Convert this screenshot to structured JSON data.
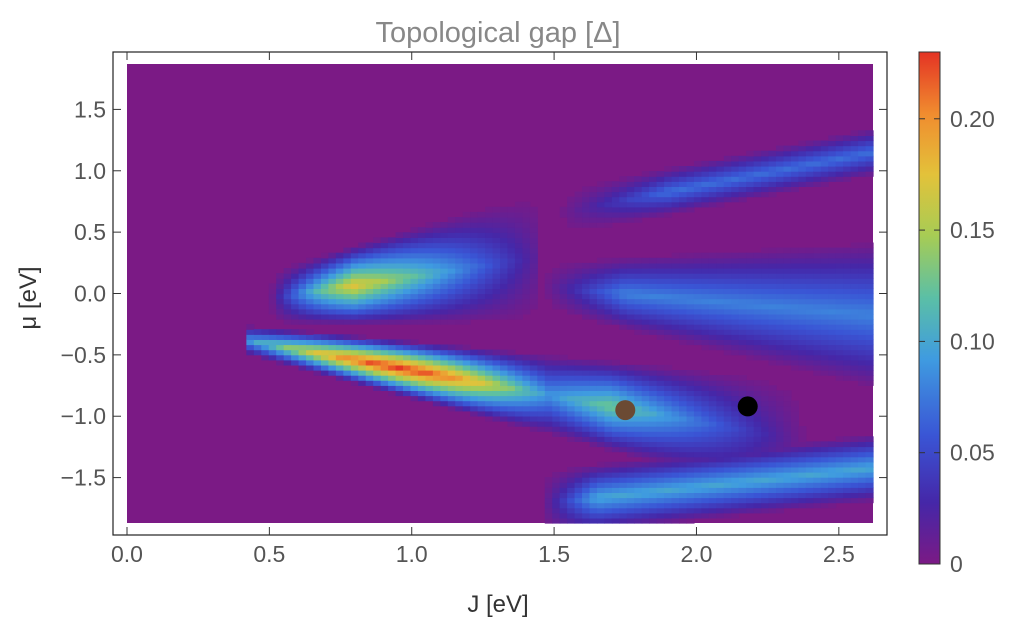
{
  "chart_data": {
    "type": "heatmap",
    "title": "Topological gap [Δ]",
    "xlabel": "J [eV]",
    "ylabel": "μ [eV]",
    "xlim": [
      0.0,
      2.62
    ],
    "ylim": [
      -1.87,
      1.87
    ],
    "x_ticks": [
      "0.0",
      "0.5",
      "1.0",
      "1.5",
      "2.0",
      "2.5"
    ],
    "x_tick_values": [
      0.0,
      0.5,
      1.0,
      1.5,
      2.0,
      2.5
    ],
    "y_ticks": [
      "1.5",
      "1.0",
      "0.5",
      "0.0",
      "−0.5",
      "−1.0",
      "−1.5"
    ],
    "y_tick_values": [
      1.5,
      1.0,
      0.5,
      0.0,
      -0.5,
      -1.0,
      -1.5
    ],
    "colorbar": {
      "range": [
        0,
        0.23
      ],
      "ticks": [
        "0.20",
        "0.15",
        "0.10",
        "0.05",
        "0"
      ],
      "tick_values": [
        0.2,
        0.15,
        0.1,
        0.05,
        0.0
      ]
    },
    "background_value": 0,
    "peak": {
      "J": 0.93,
      "mu": -0.6,
      "value": 0.22
    },
    "markers": [
      {
        "J": 1.75,
        "mu": -0.95,
        "color": "#6b4a33"
      },
      {
        "J": 2.18,
        "mu": -0.92,
        "color": "#000000"
      }
    ],
    "regions": [
      {
        "label": "upper lobe",
        "J_start": 0.5,
        "mu": 0.0,
        "value": 0.15
      },
      {
        "label": "lower lobe",
        "J_start": 0.42,
        "mu": -0.6,
        "value": 0.22
      },
      {
        "label": "right wedge",
        "J_start": 1.45,
        "mu": 0.05,
        "value": 0.08
      },
      {
        "label": "upper branch",
        "J_start": 1.6,
        "mu": 1.0,
        "value": 0.07
      },
      {
        "label": "lower branch",
        "J_start": 1.45,
        "mu": -1.6,
        "value": 0.1
      }
    ]
  }
}
